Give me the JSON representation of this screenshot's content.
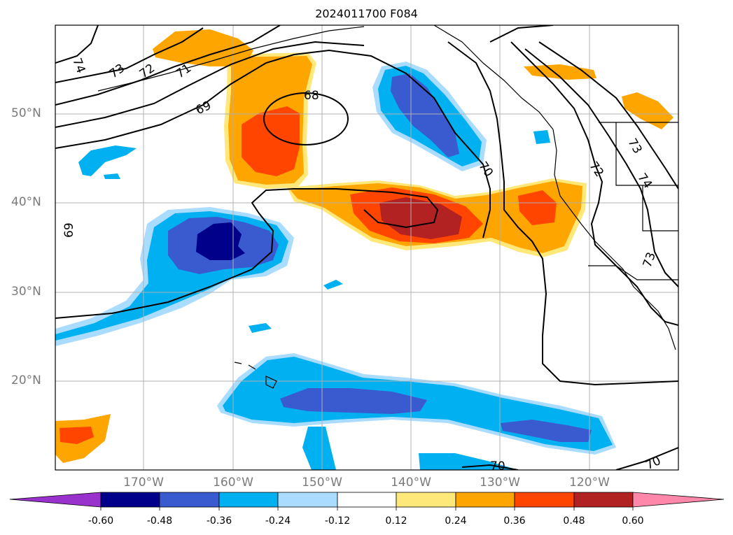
{
  "title": "2024011700 F084",
  "lat_labels": [
    "50°N",
    "40°N",
    "30°N",
    "20°N"
  ],
  "lon_labels": [
    "170°W",
    "160°W",
    "150°W",
    "140°W",
    "130°W",
    "120°W"
  ],
  "contour_labels": [
    "74",
    "73",
    "72",
    "71",
    "69",
    "68",
    "70",
    "72",
    "73",
    "74",
    "69",
    "73",
    "70",
    "70"
  ],
  "colorbar": {
    "colors": [
      "#9932cc",
      "#00008b",
      "#3a5bd0",
      "#00b0f0",
      "#aadcff",
      "#ffffff",
      "#ffe87a",
      "#ffa500",
      "#ff4500",
      "#b22222",
      "#ff88aa"
    ],
    "ticks": [
      "-0.60",
      "-0.48",
      "-0.36",
      "-0.24",
      "-0.12",
      "0.12",
      "0.24",
      "0.36",
      "0.48",
      "0.60"
    ]
  }
}
